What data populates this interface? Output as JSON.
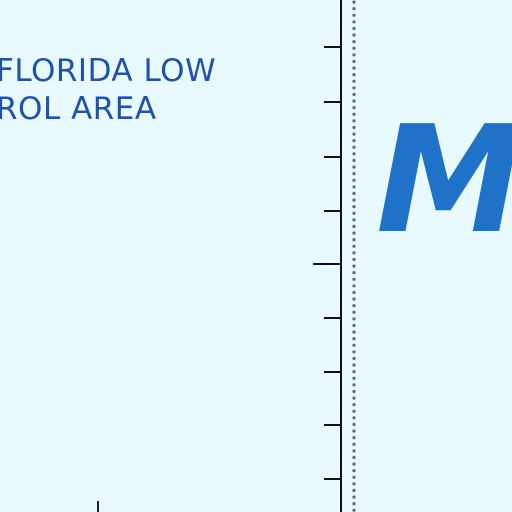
{
  "map": {
    "background_color": "#e8fafd",
    "text_color": "#1f53a7",
    "accent_color": "#1f72c8",
    "area_label_line1": "FLORIDA LOW",
    "area_label_line2": "ROL AREA",
    "big_letter": "M"
  }
}
